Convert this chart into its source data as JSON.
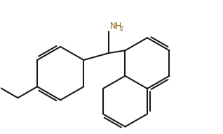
{
  "bg_color": "#ffffff",
  "line_color": "#1a1a1a",
  "nh2_color": "#8B6508",
  "line_width": 1.5,
  "fig_width": 3.18,
  "fig_height": 1.92,
  "dpi": 100
}
